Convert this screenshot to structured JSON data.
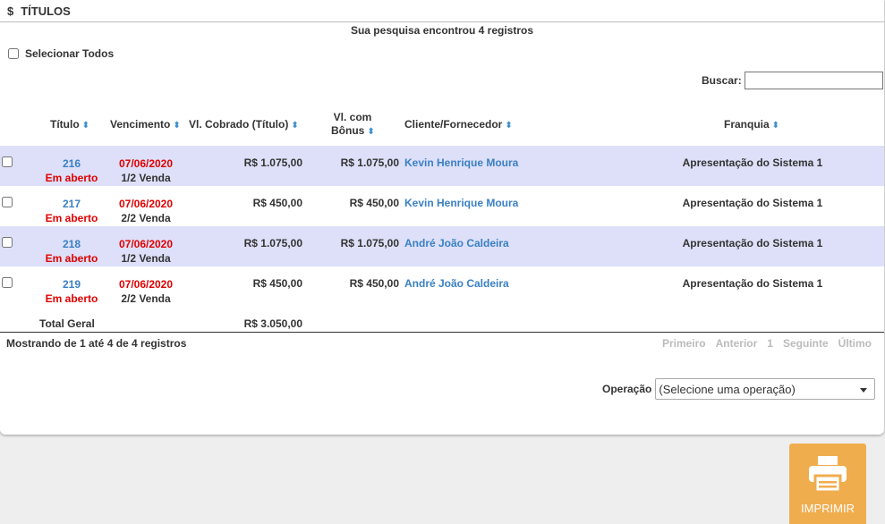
{
  "panel": {
    "title": "TÍTULOS",
    "currency_icon": "$",
    "search_result": "Sua pesquisa encontrou 4 registros",
    "select_all_label": "Selecionar Todos",
    "search_label": "Buscar:",
    "search_value": ""
  },
  "table": {
    "columns": {
      "titulo": "Título",
      "vencimento": "Vencimento",
      "vl_cobrado": "Vl. Cobrado (Título)",
      "vl_bonus_line1": "Vl. com",
      "vl_bonus_line2": "Bônus",
      "cliente": "Cliente/Fornecedor",
      "franquia": "Franquia"
    },
    "rows": [
      {
        "titulo": "216",
        "status": "Em aberto",
        "vencimento": "07/06/2020",
        "parcela": "1/2 Venda",
        "vl_cobrado": "R$ 1.075,00",
        "vl_bonus": "R$ 1.075,00",
        "cliente": "Kevin Henrique Moura",
        "franquia": "Apresentação do Sistema 1"
      },
      {
        "titulo": "217",
        "status": "Em aberto",
        "vencimento": "07/06/2020",
        "parcela": "2/2 Venda",
        "vl_cobrado": "R$ 450,00",
        "vl_bonus": "R$ 450,00",
        "cliente": "Kevin Henrique Moura",
        "franquia": "Apresentação do Sistema 1"
      },
      {
        "titulo": "218",
        "status": "Em aberto",
        "vencimento": "07/06/2020",
        "parcela": "1/2 Venda",
        "vl_cobrado": "R$ 1.075,00",
        "vl_bonus": "R$ 1.075,00",
        "cliente": "André João Caldeira",
        "franquia": "Apresentação do Sistema 1"
      },
      {
        "titulo": "219",
        "status": "Em aberto",
        "vencimento": "07/06/2020",
        "parcela": "2/2 Venda",
        "vl_cobrado": "R$ 450,00",
        "vl_bonus": "R$ 450,00",
        "cliente": "André João Caldeira",
        "franquia": "Apresentação do Sistema 1"
      }
    ],
    "total_label": "Total Geral",
    "total_value": "R$ 3.050,00"
  },
  "footer": {
    "showing": "Mostrando de 1 até 4 de 4 registros",
    "pager": {
      "first": "Primeiro",
      "previous": "Anterior",
      "page": "1",
      "next": "Seguinte",
      "last": "Último"
    }
  },
  "operation": {
    "label": "Operação",
    "selected": "(Selecione uma operação)"
  },
  "print_button": {
    "label": "IMPRIMIR",
    "icon": "printer-icon"
  },
  "colors": {
    "accent": "#f0ad4e",
    "link": "#3a80c4",
    "overdue": "#e00000",
    "row_alt": "#dde0f8"
  }
}
